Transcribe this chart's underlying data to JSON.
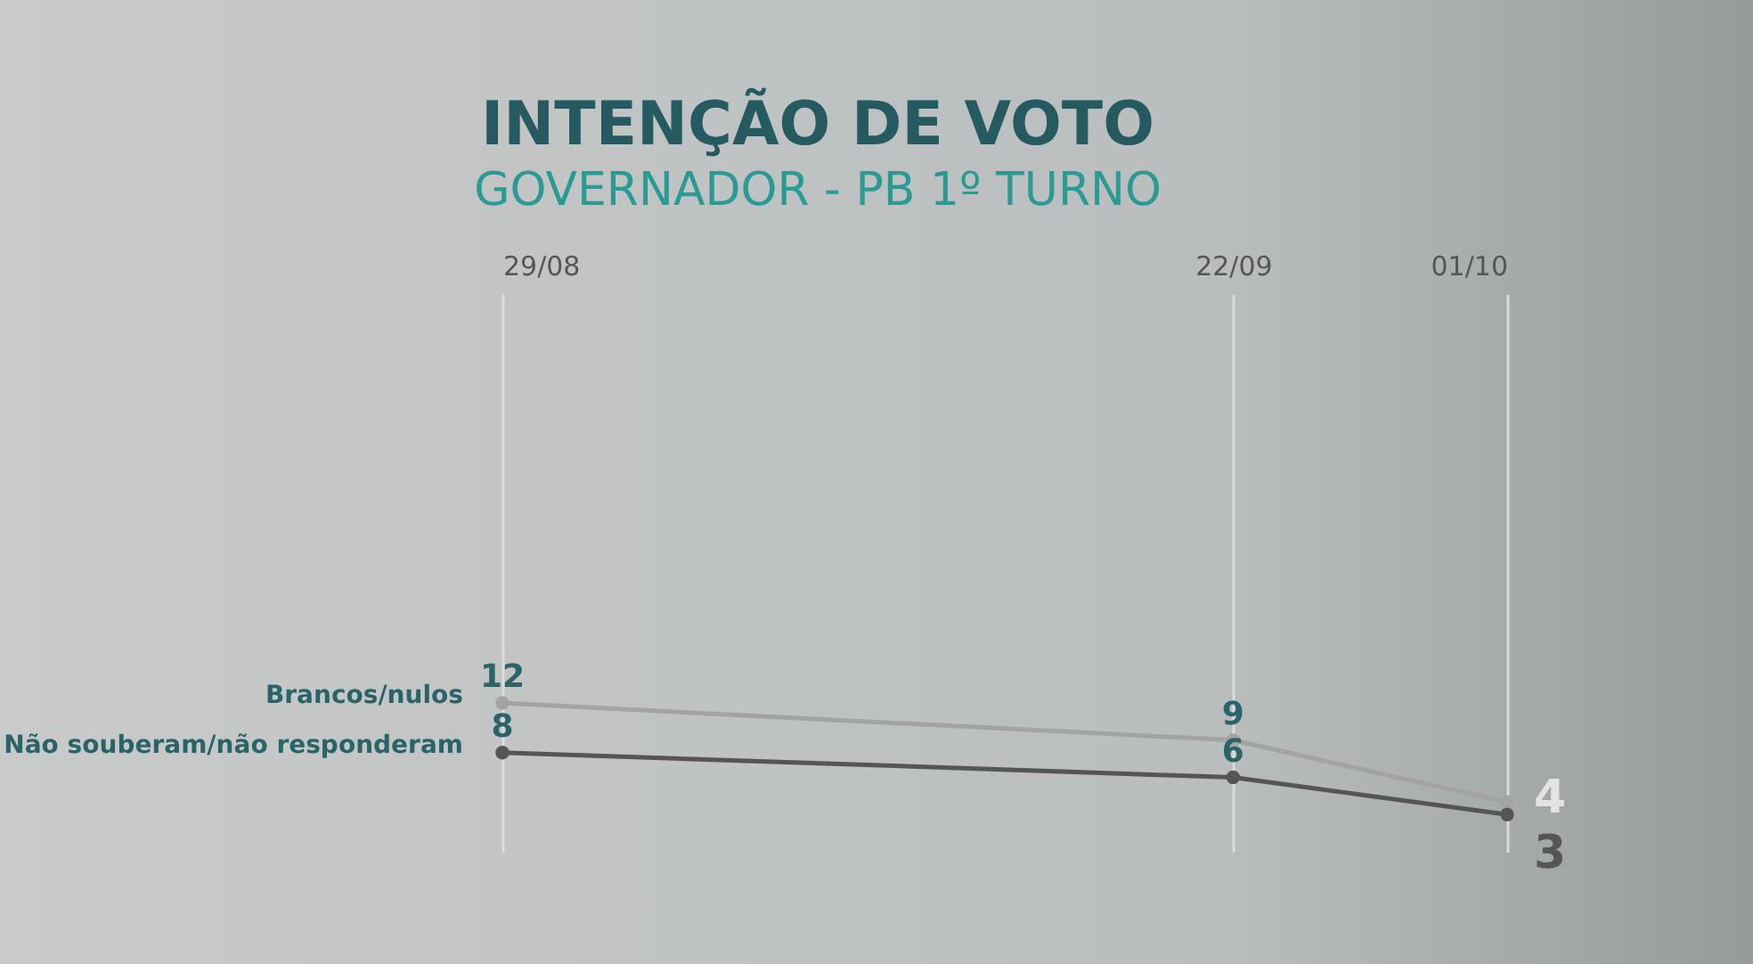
{
  "chart_data": {
    "type": "line",
    "title": "INTENÇÃO DE VOTO",
    "subtitle": "GOVERNADOR - PB 1º TURNO",
    "x": [
      "--08-29",
      "--09-22",
      "--10-01"
    ],
    "xlim": [
      "--08-29",
      "--10-01"
    ],
    "xticks": [
      {
        "value": "--08-29",
        "label": "29/08"
      },
      {
        "value": "--09-22",
        "label": "22/09"
      },
      {
        "value": "--10-01",
        "label": "01/10"
      }
    ],
    "ylim": [
      0,
      45
    ],
    "series": [
      {
        "name": "Brancos/nulos",
        "color": "#a3a3a3",
        "values": [
          12,
          9,
          4
        ]
      },
      {
        "name": "Não souberam/não responderam",
        "color": "#555555",
        "values": [
          8,
          6,
          3
        ]
      }
    ],
    "data_labels": true,
    "grid": "x",
    "legend": false,
    "marker": "circle",
    "line_style": "solid"
  }
}
